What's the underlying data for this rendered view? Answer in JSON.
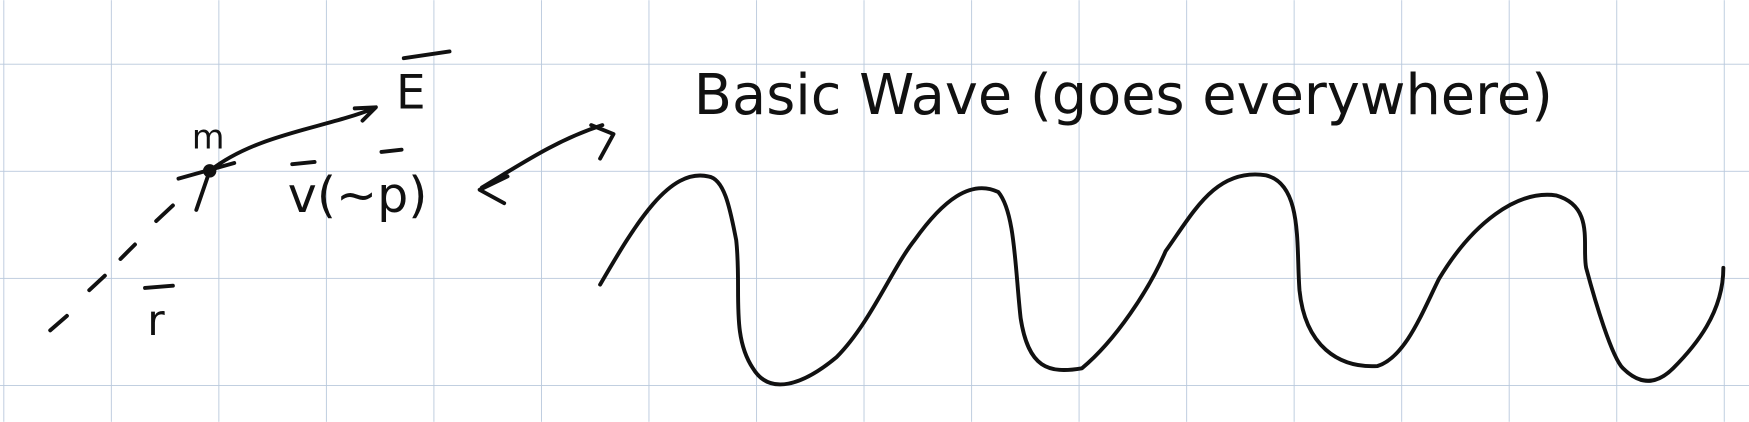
{
  "labels": {
    "mass": "m",
    "energy": "E",
    "velocity": "v(~p)",
    "position": "r"
  },
  "title": "Basic Wave (goes everywhere)"
}
